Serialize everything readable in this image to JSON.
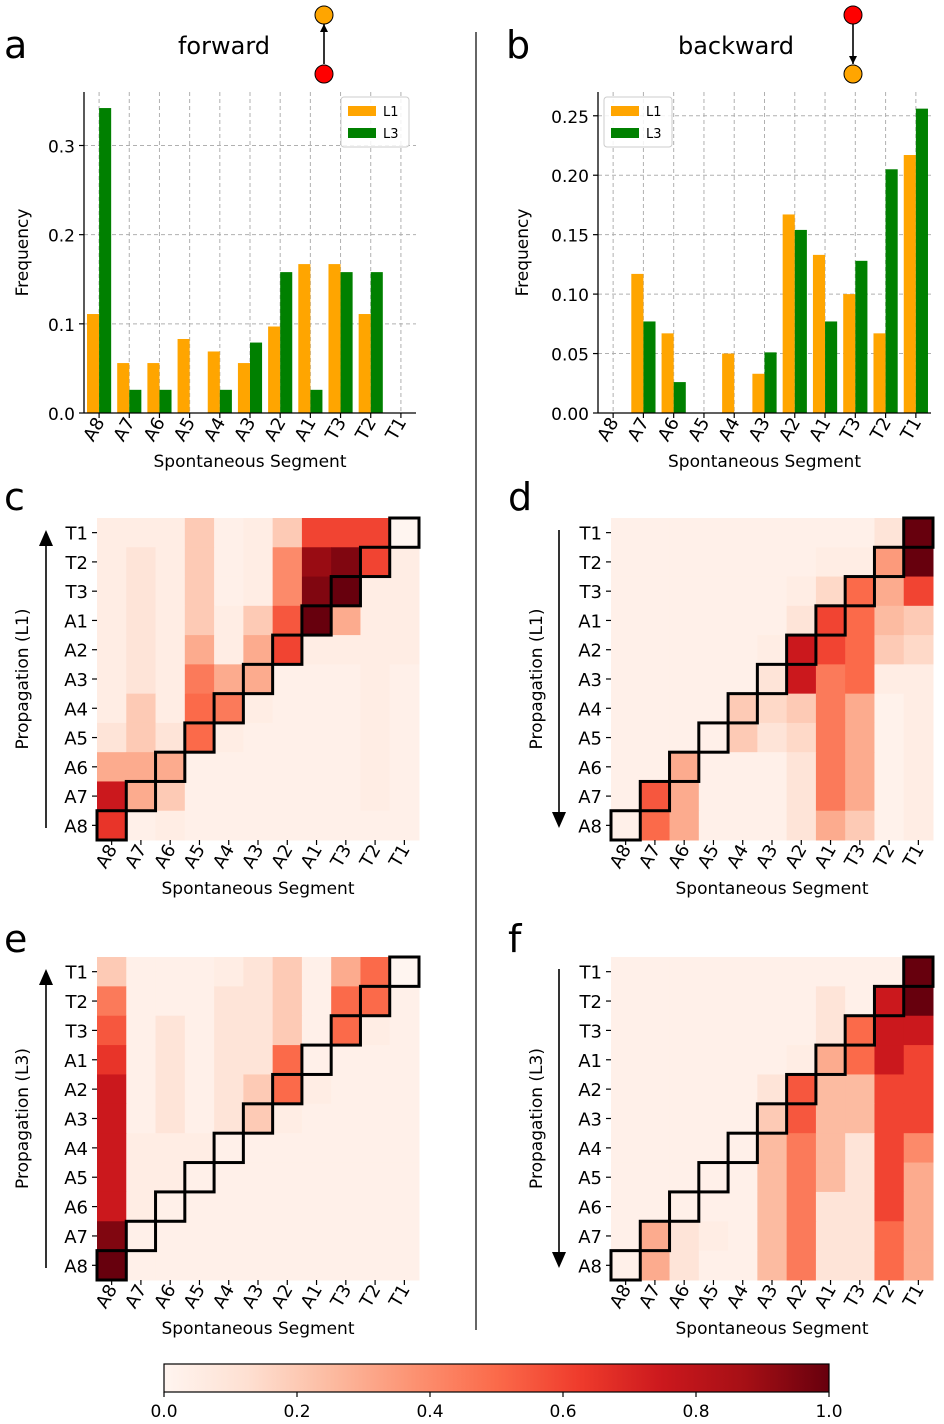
{
  "colors": {
    "L1": "#ffa500",
    "L3": "#008000",
    "cmap": [
      "#fff5f0",
      "#fee0d2",
      "#fcbba1",
      "#fc9272",
      "#fb6a4a",
      "#ef3b2c",
      "#cb181d",
      "#a50f15",
      "#67000d"
    ],
    "cmap_stops": [
      0,
      0.125,
      0.25,
      0.375,
      0.5,
      0.625,
      0.75,
      0.875,
      1
    ]
  },
  "chart_data": [
    {
      "id": "a",
      "type": "bar",
      "panel_letter": "a",
      "title": "forward",
      "xlabel": "Spontaneous Segment",
      "ylabel": "Frequency",
      "categories": [
        "A8",
        "A7",
        "A6",
        "A5",
        "A4",
        "A3",
        "A2",
        "A1",
        "T3",
        "T2",
        "T1"
      ],
      "ylim": [
        0,
        0.36
      ],
      "yticks": [
        0.0,
        0.1,
        0.2,
        0.3
      ],
      "ytick_labels": [
        "0.0",
        "0.1",
        "0.2",
        "0.3"
      ],
      "grid": true,
      "legend": "top-right",
      "series": [
        {
          "name": "L1",
          "color_key": "L1",
          "values": [
            0.111,
            0.056,
            0.056,
            0.083,
            0.069,
            0.056,
            0.097,
            0.167,
            0.167,
            0.111,
            0.0
          ]
        },
        {
          "name": "L3",
          "color_key": "L3",
          "values": [
            0.342,
            0.026,
            0.026,
            0.0,
            0.026,
            0.079,
            0.158,
            0.026,
            0.158,
            0.158,
            0.0
          ]
        }
      ]
    },
    {
      "id": "b",
      "type": "bar",
      "panel_letter": "b",
      "title": "backward",
      "xlabel": "Spontaneous Segment",
      "ylabel": "Frequency",
      "categories": [
        "A8",
        "A7",
        "A6",
        "A5",
        "A4",
        "A3",
        "A2",
        "A1",
        "T3",
        "T2",
        "T1"
      ],
      "ylim": [
        0,
        0.27
      ],
      "yticks": [
        0.0,
        0.05,
        0.1,
        0.15,
        0.2,
        0.25
      ],
      "ytick_labels": [
        "0.00",
        "0.05",
        "0.10",
        "0.15",
        "0.20",
        "0.25"
      ],
      "grid": true,
      "legend": "top-left",
      "series": [
        {
          "name": "L1",
          "color_key": "L1",
          "values": [
            0.0,
            0.117,
            0.067,
            0.0,
            0.05,
            0.033,
            0.167,
            0.133,
            0.1,
            0.067,
            0.217
          ]
        },
        {
          "name": "L3",
          "color_key": "L3",
          "values": [
            0.0,
            0.077,
            0.026,
            0.0,
            0.0,
            0.051,
            0.154,
            0.077,
            0.128,
            0.205,
            0.256
          ]
        }
      ]
    },
    {
      "id": "c",
      "type": "heatmap",
      "panel_letter": "c",
      "xlabel": "Spontaneous Segment",
      "ylabel": "Propagation (L1)",
      "arrow": "up",
      "x_categories": [
        "A8",
        "A7",
        "A6",
        "A5",
        "A4",
        "A3",
        "A2",
        "A1",
        "T3",
        "T2",
        "T1"
      ],
      "y_categories": [
        "T1",
        "T2",
        "T3",
        "A1",
        "A2",
        "A3",
        "A4",
        "A5",
        "A6",
        "A7",
        "A8"
      ],
      "values": [
        [
          0.05,
          0.05,
          0.05,
          0.2,
          0.03,
          0.05,
          0.2,
          0.6,
          0.6,
          0.6,
          0.0
        ],
        [
          0.05,
          0.1,
          0.05,
          0.2,
          0.03,
          0.05,
          0.4,
          0.9,
          0.95,
          0.6,
          0.05
        ],
        [
          0.05,
          0.1,
          0.05,
          0.2,
          0.03,
          0.05,
          0.4,
          0.95,
          1.0,
          0.05,
          0.05
        ],
        [
          0.05,
          0.1,
          0.05,
          0.2,
          0.05,
          0.2,
          0.55,
          1.0,
          0.3,
          0.05,
          0.05
        ],
        [
          0.05,
          0.1,
          0.05,
          0.3,
          0.05,
          0.3,
          0.6,
          0.05,
          0.05,
          0.05,
          0.05
        ],
        [
          0.05,
          0.1,
          0.05,
          0.45,
          0.3,
          0.3,
          0.03,
          0.03,
          0.03,
          0.05,
          0.03
        ],
        [
          0.05,
          0.2,
          0.05,
          0.5,
          0.45,
          0.05,
          0.03,
          0.03,
          0.03,
          0.05,
          0.03
        ],
        [
          0.1,
          0.2,
          0.1,
          0.5,
          0.05,
          0.03,
          0.03,
          0.03,
          0.03,
          0.05,
          0.03
        ],
        [
          0.3,
          0.3,
          0.3,
          0.03,
          0.03,
          0.03,
          0.03,
          0.03,
          0.03,
          0.05,
          0.03
        ],
        [
          0.75,
          0.3,
          0.2,
          0.03,
          0.03,
          0.03,
          0.03,
          0.03,
          0.03,
          0.05,
          0.03
        ],
        [
          0.65,
          0.03,
          0.05,
          0.03,
          0.03,
          0.03,
          0.03,
          0.03,
          0.03,
          0.03,
          0.03
        ]
      ],
      "diagonal": [
        [
          0,
          10
        ],
        [
          1,
          9
        ],
        [
          2,
          8
        ],
        [
          3,
          7
        ],
        [
          4,
          6
        ],
        [
          5,
          5
        ],
        [
          6,
          4
        ],
        [
          7,
          3
        ],
        [
          8,
          2
        ],
        [
          9,
          1
        ],
        [
          10,
          0
        ]
      ]
    },
    {
      "id": "d",
      "type": "heatmap",
      "panel_letter": "d",
      "xlabel": "Spontaneous Segment",
      "ylabel": "Propagation (L1)",
      "arrow": "down",
      "x_categories": [
        "A8",
        "A7",
        "A6",
        "A5",
        "A4",
        "A3",
        "A2",
        "A1",
        "T3",
        "T2",
        "T1"
      ],
      "y_categories": [
        "T1",
        "T2",
        "T3",
        "A1",
        "A2",
        "A3",
        "A4",
        "A5",
        "A6",
        "A7",
        "A8"
      ],
      "values": [
        [
          0.03,
          0.03,
          0.03,
          0.03,
          0.03,
          0.03,
          0.03,
          0.03,
          0.03,
          0.1,
          1.0
        ],
        [
          0.03,
          0.03,
          0.03,
          0.03,
          0.03,
          0.03,
          0.03,
          0.05,
          0.05,
          0.35,
          1.0
        ],
        [
          0.03,
          0.03,
          0.03,
          0.03,
          0.03,
          0.03,
          0.05,
          0.15,
          0.5,
          0.3,
          0.6
        ],
        [
          0.03,
          0.03,
          0.03,
          0.03,
          0.03,
          0.03,
          0.1,
          0.6,
          0.5,
          0.25,
          0.2
        ],
        [
          0.03,
          0.03,
          0.03,
          0.03,
          0.03,
          0.05,
          0.75,
          0.6,
          0.5,
          0.2,
          0.15
        ],
        [
          0.03,
          0.03,
          0.03,
          0.03,
          0.03,
          0.1,
          0.75,
          0.45,
          0.5,
          0.05,
          0.05
        ],
        [
          0.03,
          0.03,
          0.03,
          0.03,
          0.2,
          0.15,
          0.2,
          0.45,
          0.3,
          0.02,
          0.05
        ],
        [
          0.03,
          0.03,
          0.03,
          0.03,
          0.2,
          0.1,
          0.15,
          0.45,
          0.3,
          0.02,
          0.05
        ],
        [
          0.03,
          0.03,
          0.3,
          0.03,
          0.03,
          0.03,
          0.1,
          0.45,
          0.3,
          0.02,
          0.05
        ],
        [
          0.03,
          0.55,
          0.3,
          0.03,
          0.03,
          0.03,
          0.1,
          0.45,
          0.3,
          0.02,
          0.05
        ],
        [
          0.03,
          0.5,
          0.3,
          0.03,
          0.03,
          0.03,
          0.1,
          0.3,
          0.2,
          0.02,
          0.05
        ]
      ],
      "diagonal": [
        [
          0,
          10
        ],
        [
          1,
          9
        ],
        [
          2,
          8
        ],
        [
          3,
          7
        ],
        [
          4,
          6
        ],
        [
          5,
          5
        ],
        [
          6,
          4
        ],
        [
          7,
          3
        ],
        [
          8,
          2
        ],
        [
          9,
          1
        ],
        [
          10,
          0
        ]
      ]
    },
    {
      "id": "e",
      "type": "heatmap",
      "panel_letter": "e",
      "xlabel": "Spontaneous Segment",
      "ylabel": "Propagation (L3)",
      "arrow": "up",
      "x_categories": [
        "A8",
        "A7",
        "A6",
        "A5",
        "A4",
        "A3",
        "A2",
        "A1",
        "T3",
        "T2",
        "T1"
      ],
      "y_categories": [
        "T1",
        "T2",
        "T3",
        "A1",
        "A2",
        "A3",
        "A4",
        "A5",
        "A6",
        "A7",
        "A8"
      ],
      "values": [
        [
          0.2,
          0.03,
          0.03,
          0.03,
          0.05,
          0.1,
          0.2,
          0.03,
          0.3,
          0.5,
          0.0
        ],
        [
          0.45,
          0.03,
          0.03,
          0.03,
          0.1,
          0.1,
          0.2,
          0.03,
          0.5,
          0.5,
          0.03
        ],
        [
          0.55,
          0.03,
          0.1,
          0.03,
          0.1,
          0.1,
          0.2,
          0.03,
          0.5,
          0.05,
          0.03
        ],
        [
          0.65,
          0.03,
          0.1,
          0.03,
          0.1,
          0.1,
          0.5,
          0.03,
          0.03,
          0.03,
          0.03
        ],
        [
          0.75,
          0.03,
          0.1,
          0.03,
          0.1,
          0.2,
          0.5,
          0.05,
          0.03,
          0.03,
          0.03
        ],
        [
          0.75,
          0.03,
          0.1,
          0.03,
          0.1,
          0.2,
          0.05,
          0.03,
          0.03,
          0.03,
          0.03
        ],
        [
          0.75,
          0.05,
          0.05,
          0.05,
          0.03,
          0.03,
          0.03,
          0.03,
          0.03,
          0.03,
          0.03
        ],
        [
          0.75,
          0.05,
          0.05,
          0.03,
          0.03,
          0.03,
          0.03,
          0.03,
          0.03,
          0.03,
          0.03
        ],
        [
          0.75,
          0.05,
          0.03,
          0.03,
          0.03,
          0.03,
          0.03,
          0.03,
          0.03,
          0.03,
          0.03
        ],
        [
          0.95,
          0.03,
          0.03,
          0.03,
          0.03,
          0.03,
          0.03,
          0.03,
          0.03,
          0.03,
          0.03
        ],
        [
          1.0,
          0.03,
          0.03,
          0.03,
          0.03,
          0.03,
          0.03,
          0.03,
          0.03,
          0.03,
          0.03
        ]
      ],
      "diagonal": [
        [
          0,
          10
        ],
        [
          1,
          9
        ],
        [
          2,
          8
        ],
        [
          3,
          7
        ],
        [
          4,
          6
        ],
        [
          5,
          5
        ],
        [
          6,
          4
        ],
        [
          7,
          3
        ],
        [
          8,
          2
        ],
        [
          9,
          1
        ],
        [
          10,
          0
        ]
      ]
    },
    {
      "id": "f",
      "type": "heatmap",
      "panel_letter": "f",
      "xlabel": "Spontaneous Segment",
      "ylabel": "Propagation (L3)",
      "arrow": "down",
      "x_categories": [
        "A8",
        "A7",
        "A6",
        "A5",
        "A4",
        "A3",
        "A2",
        "A1",
        "T3",
        "T2",
        "T1"
      ],
      "y_categories": [
        "T1",
        "T2",
        "T3",
        "A1",
        "A2",
        "A3",
        "A4",
        "A5",
        "A6",
        "A7",
        "A8"
      ],
      "values": [
        [
          0.03,
          0.03,
          0.03,
          0.03,
          0.03,
          0.03,
          0.03,
          0.03,
          0.03,
          0.03,
          1.0
        ],
        [
          0.03,
          0.03,
          0.03,
          0.03,
          0.03,
          0.03,
          0.03,
          0.1,
          0.03,
          0.75,
          1.0
        ],
        [
          0.03,
          0.03,
          0.03,
          0.03,
          0.03,
          0.03,
          0.03,
          0.1,
          0.5,
          0.75,
          0.75
        ],
        [
          0.03,
          0.03,
          0.03,
          0.03,
          0.03,
          0.03,
          0.05,
          0.3,
          0.5,
          0.75,
          0.6
        ],
        [
          0.03,
          0.03,
          0.03,
          0.03,
          0.03,
          0.1,
          0.55,
          0.25,
          0.25,
          0.6,
          0.6
        ],
        [
          0.03,
          0.03,
          0.03,
          0.03,
          0.03,
          0.2,
          0.55,
          0.25,
          0.25,
          0.6,
          0.6
        ],
        [
          0.03,
          0.03,
          0.03,
          0.03,
          0.03,
          0.25,
          0.45,
          0.25,
          0.1,
          0.6,
          0.4
        ],
        [
          0.03,
          0.03,
          0.03,
          0.03,
          0.03,
          0.25,
          0.45,
          0.25,
          0.1,
          0.6,
          0.3
        ],
        [
          0.03,
          0.03,
          0.03,
          0.03,
          0.03,
          0.25,
          0.45,
          0.1,
          0.1,
          0.6,
          0.3
        ],
        [
          0.03,
          0.3,
          0.1,
          0.05,
          0.03,
          0.25,
          0.45,
          0.1,
          0.1,
          0.5,
          0.3
        ],
        [
          0.03,
          0.3,
          0.1,
          0.03,
          0.03,
          0.25,
          0.45,
          0.1,
          0.1,
          0.5,
          0.3
        ]
      ],
      "diagonal": [
        [
          0,
          10
        ],
        [
          1,
          9
        ],
        [
          2,
          8
        ],
        [
          3,
          7
        ],
        [
          4,
          6
        ],
        [
          5,
          5
        ],
        [
          6,
          4
        ],
        [
          7,
          3
        ],
        [
          8,
          2
        ],
        [
          9,
          1
        ],
        [
          10,
          0
        ]
      ]
    }
  ],
  "colorbar": {
    "range": [
      0.0,
      1.0
    ],
    "ticks": [
      0.0,
      0.2,
      0.4,
      0.6,
      0.8,
      1.0
    ],
    "tick_labels": [
      "0.0",
      "0.2",
      "0.4",
      "0.6",
      "0.8",
      "1.0"
    ]
  }
}
